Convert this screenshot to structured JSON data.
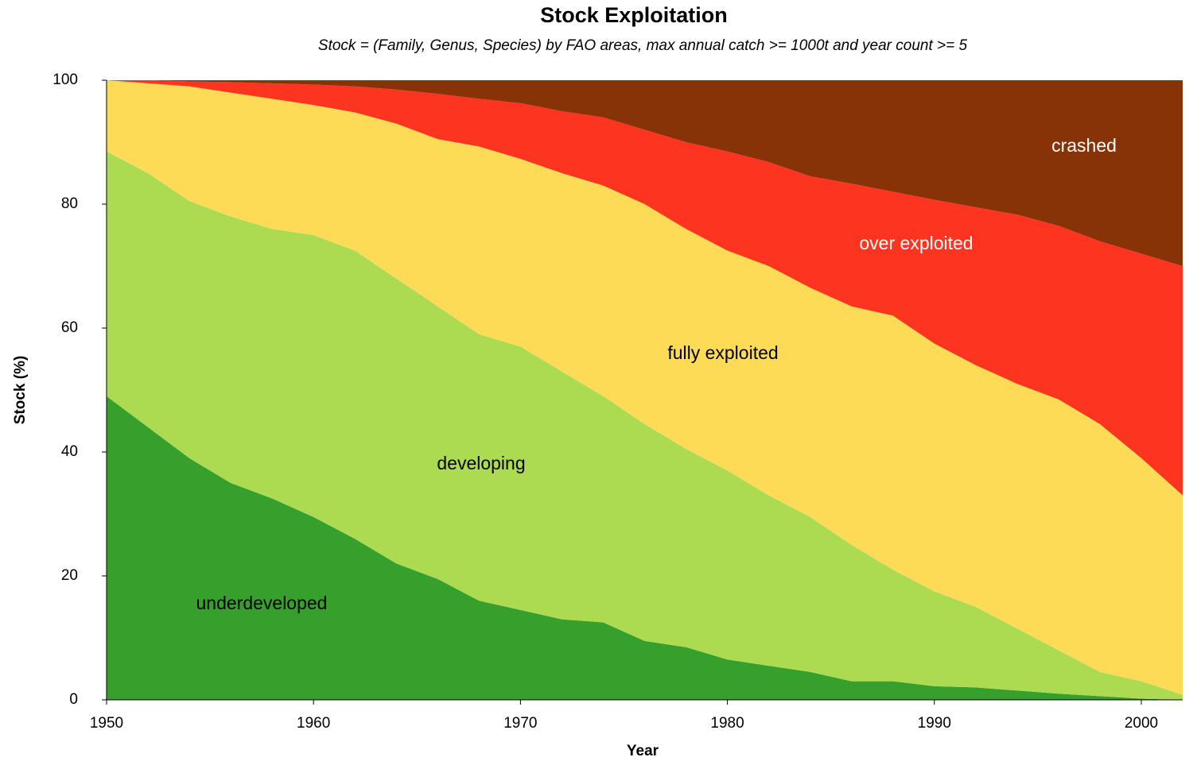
{
  "chart_data": {
    "type": "stacked_area",
    "title": "Stock Exploitation",
    "subtitle": "Stock = (Family, Genus, Species) by FAO areas, max annual catch >= 1000t and year count >= 5",
    "x_label": "Year",
    "y_label": "Stock (%)",
    "x": [
      1950,
      1952,
      1954,
      1956,
      1958,
      1960,
      1962,
      1964,
      1966,
      1968,
      1970,
      1972,
      1974,
      1976,
      1978,
      1980,
      1982,
      1984,
      1986,
      1988,
      1990,
      1992,
      1994,
      1996,
      1998,
      2000,
      2002
    ],
    "series": [
      {
        "name": "underdeveloped",
        "color": "#37a02c",
        "values": [
          49,
          44,
          39,
          35,
          32.5,
          29.5,
          26,
          22,
          19.5,
          16,
          14.5,
          13,
          12.5,
          9.5,
          8.5,
          6.5,
          5.5,
          4.5,
          3,
          3,
          2.2,
          2,
          1.5,
          1,
          0.6,
          0.2,
          0
        ]
      },
      {
        "name": "developing",
        "color": "#acda50",
        "values": [
          39.5,
          41,
          41.5,
          43,
          43.5,
          45.5,
          46.5,
          46,
          44,
          43,
          42.5,
          40,
          36.5,
          35,
          32,
          30.5,
          27.5,
          25,
          22,
          18,
          15.3,
          13,
          10,
          7,
          3.9,
          2.8,
          0.8
        ]
      },
      {
        "name": "fully exploited",
        "color": "#fddb57",
        "values": [
          11.5,
          14.5,
          18.5,
          20,
          21,
          21,
          22.3,
          25,
          27,
          30.3,
          30.3,
          32,
          34,
          35.5,
          35.5,
          35.5,
          37,
          37,
          38.5,
          41,
          40,
          39,
          39.5,
          40.5,
          40,
          36,
          32.2
        ]
      },
      {
        "name": "over exploited",
        "color": "#fd3520",
        "values": [
          0,
          0.5,
          0.8,
          1.7,
          2.5,
          3.3,
          4.2,
          5.5,
          7.3,
          7.7,
          9,
          10,
          11,
          12,
          14,
          16,
          16.8,
          18,
          19.8,
          20,
          23.2,
          25.5,
          27.3,
          28,
          29.5,
          33,
          37
        ]
      },
      {
        "name": "crashed",
        "color": "#873307",
        "values": [
          0,
          0,
          0.2,
          0.3,
          0.5,
          0.7,
          1,
          1.5,
          2.2,
          3,
          3.7,
          5,
          6,
          8,
          10,
          11.5,
          13.2,
          15.5,
          16.7,
          18,
          19.3,
          20.5,
          21.7,
          23.5,
          26,
          28,
          30
        ]
      }
    ],
    "xlim": [
      1950,
      2002
    ],
    "ylim": [
      0,
      100
    ],
    "xticks": [
      1950,
      1960,
      1970,
      1980,
      1990,
      2000
    ],
    "yticks": [
      0,
      20,
      40,
      60,
      80,
      100
    ]
  }
}
